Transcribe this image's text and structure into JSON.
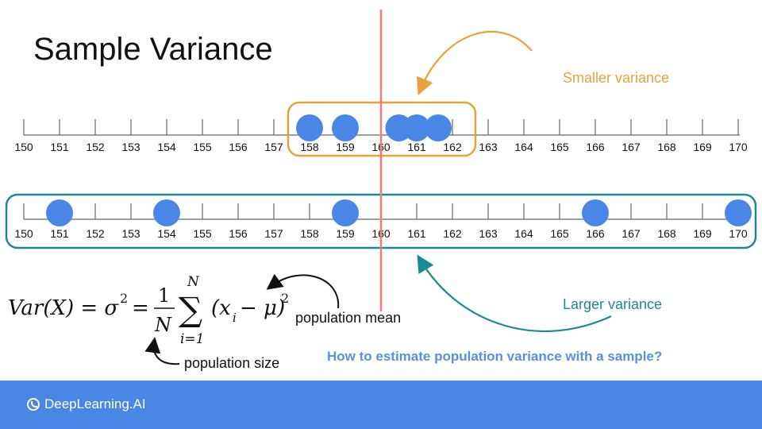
{
  "title": "Sample Variance",
  "axis_ticks": [
    "150",
    "151",
    "152",
    "153",
    "154",
    "155",
    "156",
    "157",
    "158",
    "159",
    "160",
    "161",
    "162",
    "163",
    "164",
    "165",
    "166",
    "167",
    "168",
    "169",
    "170"
  ],
  "colors": {
    "orange": "#e9a23b",
    "teal": "#1c8a92",
    "dot": "#4a86e6",
    "mean_line": "#f07b7b",
    "footer": "#4a86e6"
  },
  "top_line": {
    "points": [
      158,
      159,
      160.5,
      161,
      161.6
    ]
  },
  "bottom_line": {
    "points": [
      151,
      154,
      159,
      166,
      170
    ]
  },
  "mean_value": 160,
  "annotations": {
    "smaller_variance": "Smaller variance",
    "larger_variance": "Larger variance",
    "population_mean": "population mean",
    "population_size": "population size"
  },
  "formula": {
    "lhs": "Var(X) = σ",
    "sq": "2",
    "eq": "=",
    "num": "1",
    "den": "N",
    "sum": "∑",
    "upper": "N",
    "lower": "i=1",
    "term": "(x",
    "sub": "i",
    "term2": "− μ)",
    "sq2": "2"
  },
  "question": "How to estimate population variance with a sample?",
  "footer": {
    "brand": "DeepLearning.AI",
    "logo_icon": "deeplearning-logo-icon"
  }
}
